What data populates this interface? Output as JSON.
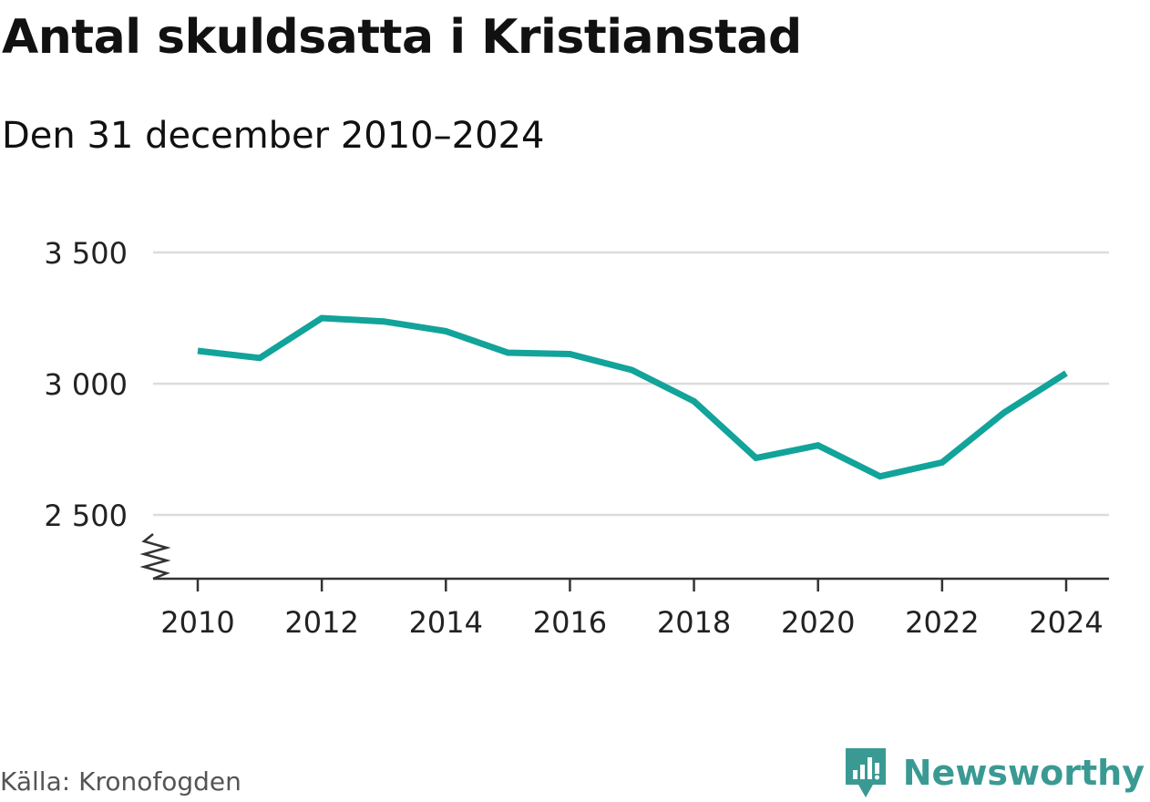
{
  "header": {
    "title": "Antal skuldsatta i Kristianstad",
    "subtitle": "Den 31 december 2010–2024"
  },
  "footer": {
    "source": "Källa: Kronofogden",
    "brand": "Newsworthy"
  },
  "colors": {
    "line": "#12a39a",
    "grid": "#dcdcdc",
    "axis": "#333333",
    "brand": "#3a9a93"
  },
  "icons": {
    "brand_logo": "newsworthy-logo-icon",
    "axis_break": "axis-break-icon"
  },
  "chart_data": {
    "type": "line",
    "title": "Antal skuldsatta i Kristianstad",
    "subtitle": "Den 31 december 2010–2024",
    "xlabel": "",
    "ylabel": "",
    "x": [
      2010,
      2011,
      2012,
      2013,
      2014,
      2015,
      2016,
      2017,
      2018,
      2019,
      2020,
      2021,
      2022,
      2023,
      2024
    ],
    "series": [
      {
        "values": [
          3125,
          3098,
          3250,
          3237,
          3200,
          3118,
          3113,
          3052,
          2933,
          2717,
          2765,
          2647,
          2700,
          2890,
          3040
        ]
      }
    ],
    "yticks": [
      2500,
      3000,
      3500
    ],
    "ytick_labels": [
      "2 500",
      "3 000",
      "3 500"
    ],
    "xticks": [
      2010,
      2012,
      2014,
      2016,
      2018,
      2020,
      2022,
      2024
    ],
    "xtick_labels": [
      "2010",
      "2012",
      "2014",
      "2016",
      "2018",
      "2020",
      "2022",
      "2024"
    ],
    "ylim": [
      2250,
      3500
    ],
    "y_axis_break": true,
    "grid": true,
    "legend": "none"
  }
}
